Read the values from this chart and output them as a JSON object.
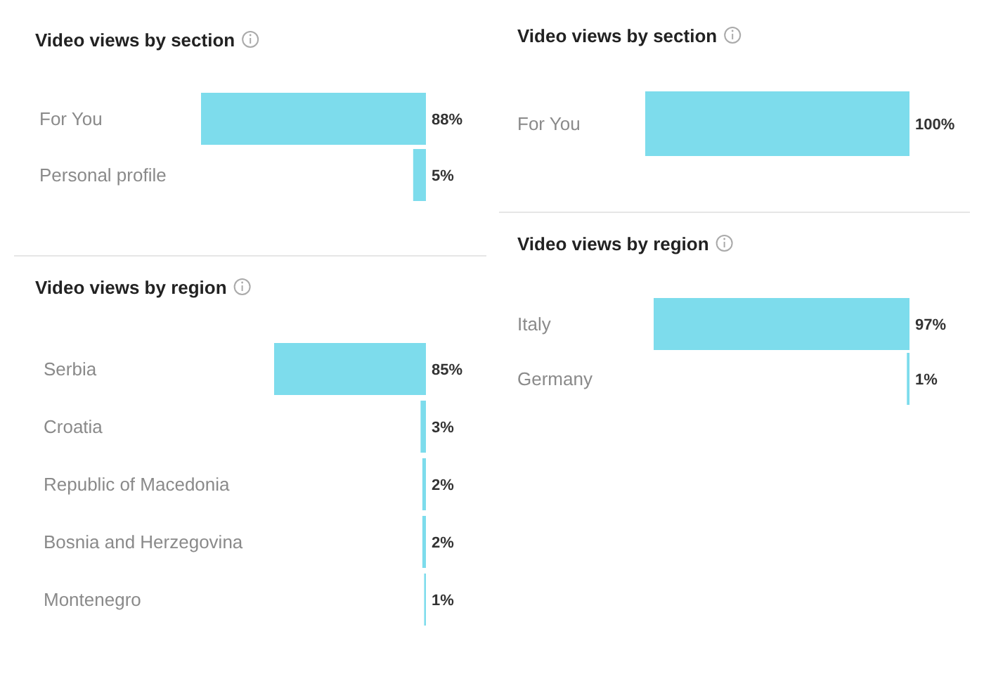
{
  "chart_data": [
    {
      "type": "bar",
      "orientation": "horizontal",
      "title": "Video views by section",
      "categories": [
        "For You",
        "Personal profile"
      ],
      "values": [
        88,
        5
      ],
      "value_labels": [
        "88%",
        "5%"
      ],
      "color": "#7ddcec",
      "tick_labels": "y"
    },
    {
      "type": "bar",
      "orientation": "horizontal",
      "title": "Video views by section",
      "categories": [
        "For You"
      ],
      "values": [
        100
      ],
      "value_labels": [
        "100%"
      ],
      "color": "#7ddcec",
      "tick_labels": "y"
    },
    {
      "type": "bar",
      "orientation": "horizontal",
      "title": "Video views by region",
      "categories": [
        "Serbia",
        "Croatia",
        "Republic of Macedonia",
        "Bosnia and Herzegovina",
        "Montenegro"
      ],
      "values": [
        85,
        3,
        2,
        2,
        1
      ],
      "value_labels": [
        "85%",
        "3%",
        "2%",
        "2%",
        "1%"
      ],
      "color": "#7ddcec",
      "tick_labels": "y"
    },
    {
      "type": "bar",
      "orientation": "horizontal",
      "title": "Video views by region",
      "categories": [
        "Italy",
        "Germany"
      ],
      "values": [
        97,
        1
      ],
      "value_labels": [
        "97%",
        "1%"
      ],
      "color": "#7ddcec",
      "tick_labels": "y"
    }
  ]
}
